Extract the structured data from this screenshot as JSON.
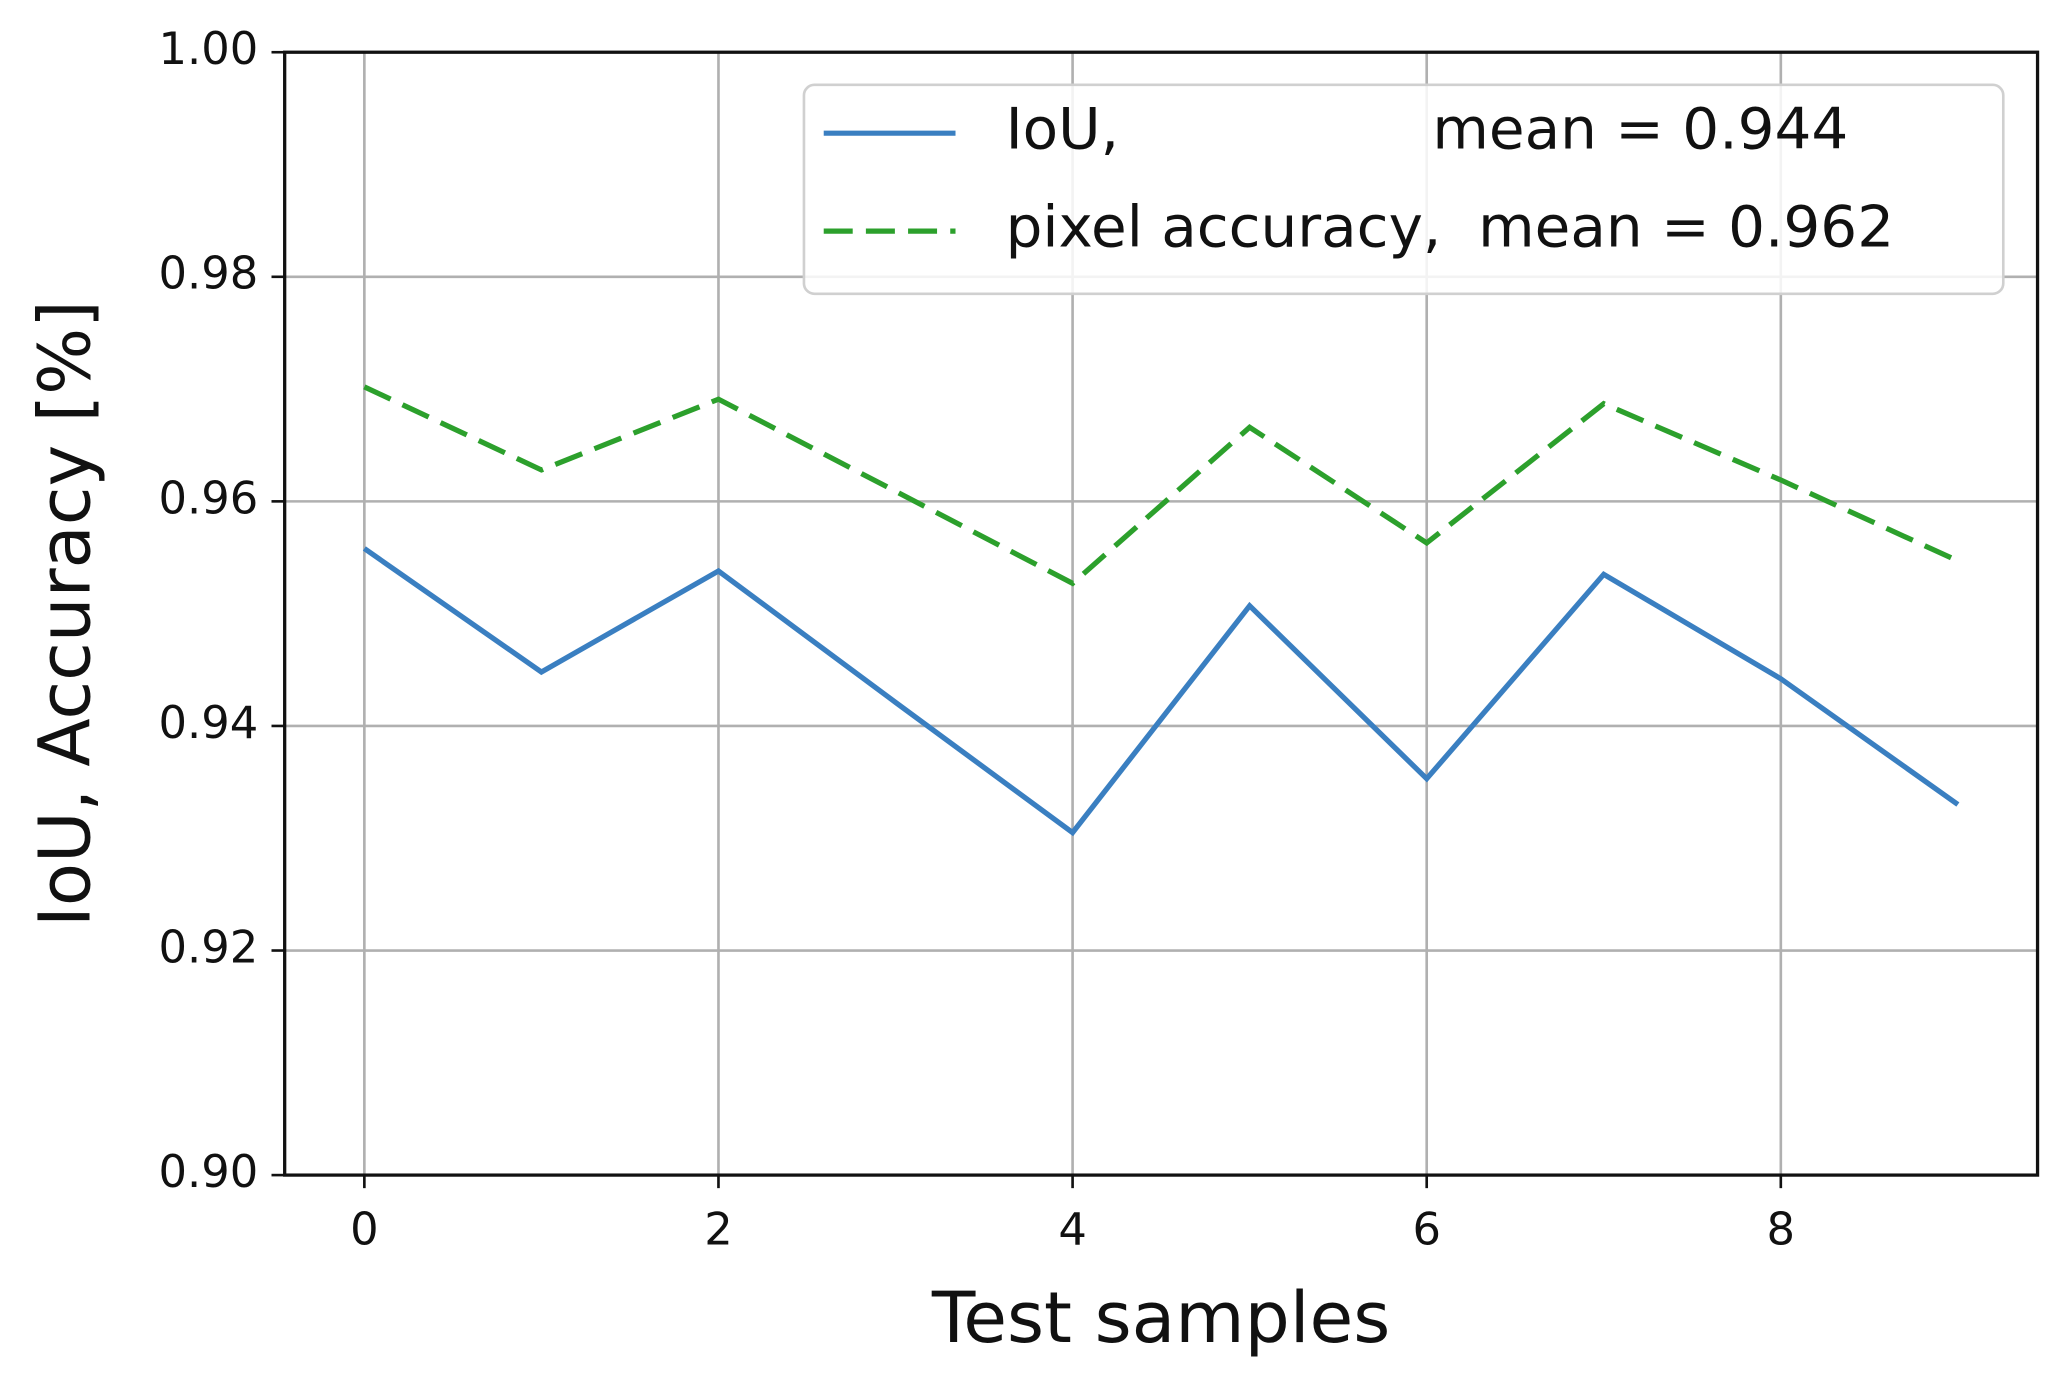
{
  "chart_data": {
    "type": "line",
    "xlabel": "Test samples",
    "ylabel": "IoU, Accuracy [%]",
    "x": [
      0,
      1,
      2,
      3,
      4,
      5,
      6,
      7,
      8,
      9
    ],
    "series": [
      {
        "name": "IoU,                 mean = 0.944",
        "color": "#3a7fc1",
        "linestyle": "solid",
        "values": [
          0.9558,
          0.9448,
          0.9538,
          0.9421,
          0.9305,
          0.9507,
          0.9353,
          0.9535,
          0.9442,
          0.933
        ]
      },
      {
        "name": "pixel accuracy,  mean = 0.962",
        "color": "#2ca02c",
        "linestyle": "dashed",
        "values": [
          0.9702,
          0.9628,
          0.9691,
          0.9609,
          0.9527,
          0.9666,
          0.9563,
          0.9687,
          0.9619,
          0.9547
        ]
      }
    ],
    "xlim": [
      -0.45,
      9.45
    ],
    "xticks": [
      0,
      2,
      4,
      6,
      8
    ],
    "ylim": [
      0.9,
      1.0
    ],
    "yticks": [
      {
        "value": 0.9,
        "label": "0.90"
      },
      0.92,
      0.94,
      0.96,
      0.98,
      {
        "value": 1.0,
        "label": "1.00"
      }
    ],
    "grid": true,
    "legend": "upper right"
  }
}
